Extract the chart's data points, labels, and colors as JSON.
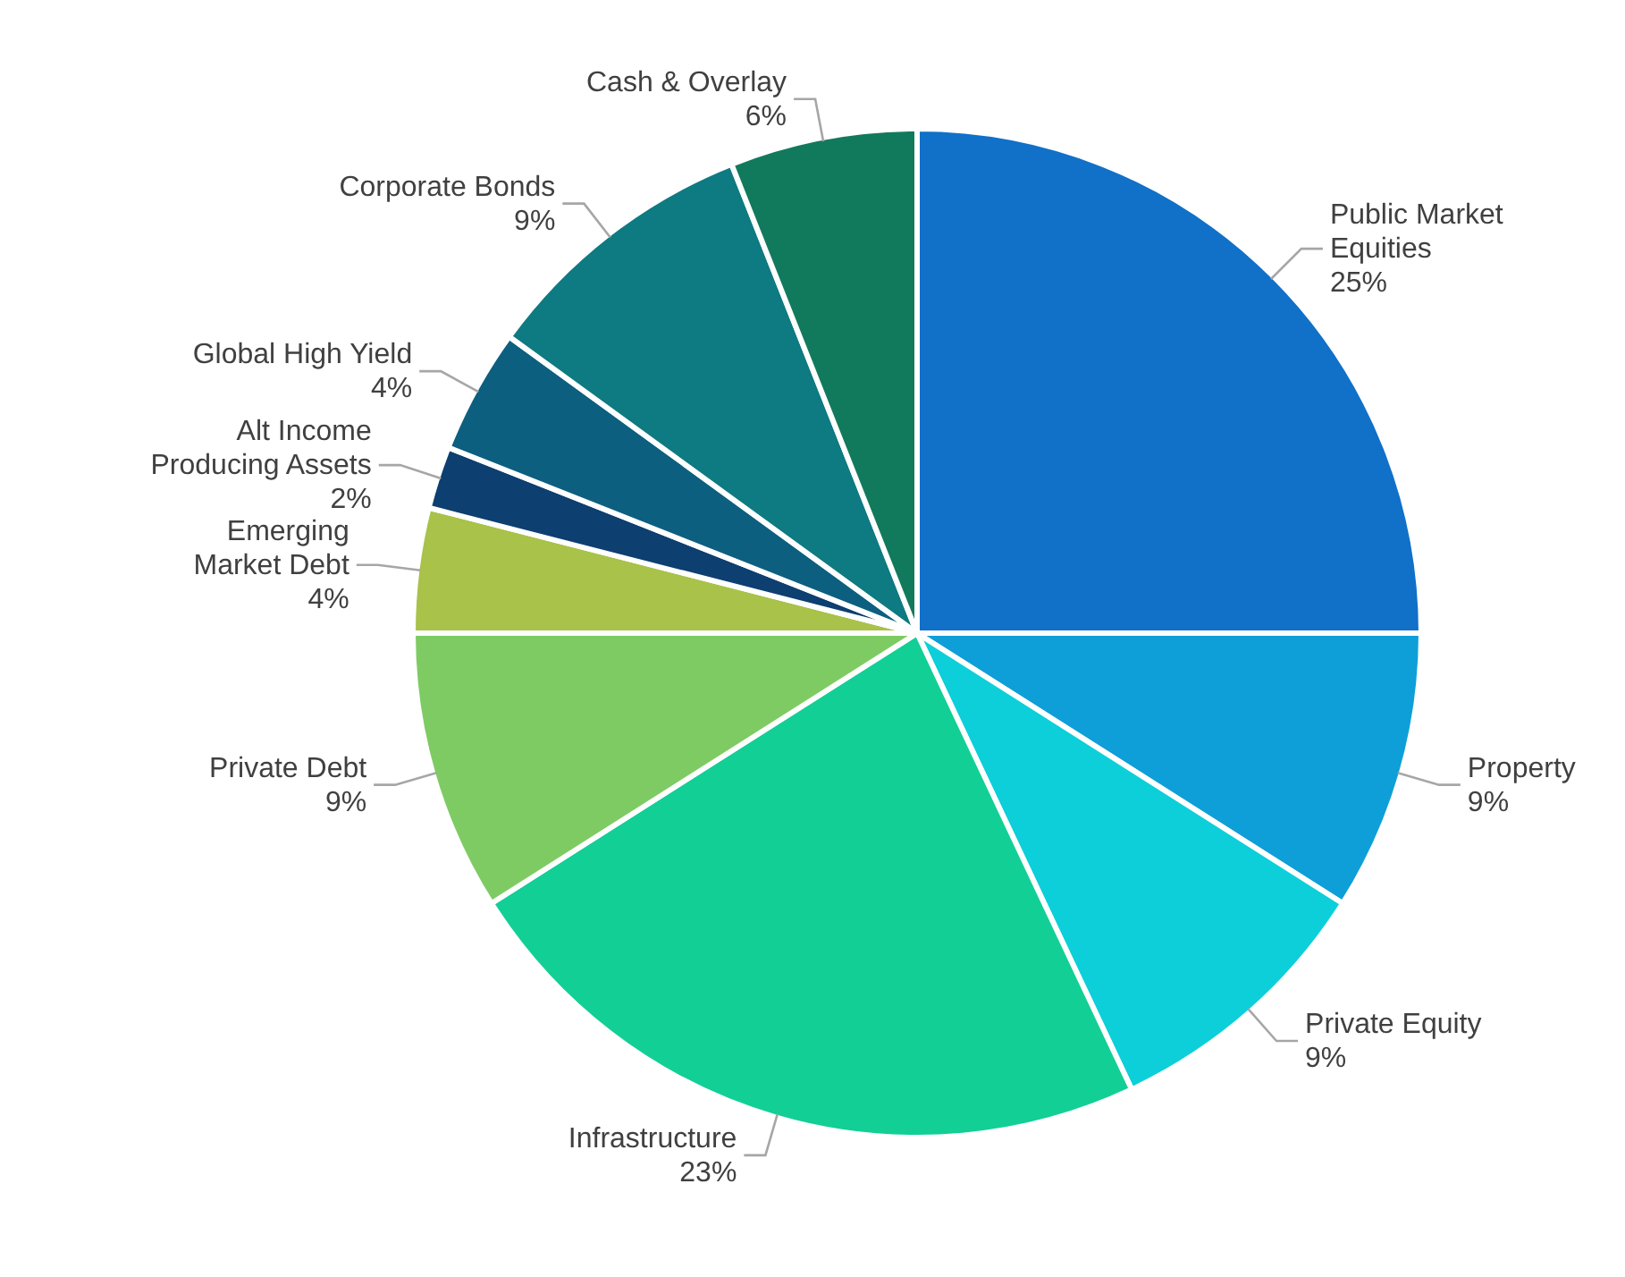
{
  "chart_data": {
    "type": "pie",
    "categories": [
      "Public Market Equities",
      "Property",
      "Private Equity",
      "Infrastructure",
      "Private Debt",
      "Emerging Market Debt",
      "Alt Income Producing Assets",
      "Global High Yield",
      "Corporate Bonds",
      "Cash & Overlay"
    ],
    "values": [
      25,
      9,
      9,
      23,
      9,
      4,
      2,
      4,
      9,
      6
    ],
    "colors": [
      "#1170c8",
      "#0e9fd8",
      "#0ccfd9",
      "#12cf96",
      "#7ecb63",
      "#a8c24a",
      "#0d3f70",
      "#0d5f80",
      "#0e7a82",
      "#127a5c"
    ],
    "value_labels": [
      "25%",
      "9%",
      "9%",
      "23%",
      "9%",
      "4%",
      "2%",
      "4%",
      "9%",
      "6%"
    ]
  }
}
